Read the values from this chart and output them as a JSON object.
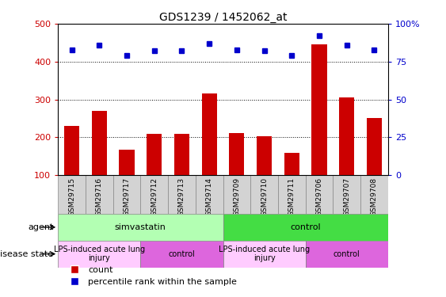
{
  "title": "GDS1239 / 1452062_at",
  "samples": [
    "GSM29715",
    "GSM29716",
    "GSM29717",
    "GSM29712",
    "GSM29713",
    "GSM29714",
    "GSM29709",
    "GSM29710",
    "GSM29711",
    "GSM29706",
    "GSM29707",
    "GSM29708"
  ],
  "counts": [
    230,
    270,
    168,
    210,
    210,
    315,
    212,
    202,
    160,
    445,
    305,
    252
  ],
  "percentiles": [
    83,
    86,
    79,
    82,
    82,
    87,
    83,
    82,
    79,
    92,
    86,
    83
  ],
  "bar_color": "#cc0000",
  "dot_color": "#0000cc",
  "ylim_left": [
    100,
    500
  ],
  "ylim_right": [
    0,
    100
  ],
  "yticks_left": [
    100,
    200,
    300,
    400,
    500
  ],
  "yticks_right": [
    0,
    25,
    50,
    75,
    100
  ],
  "gridlines": [
    200,
    300,
    400
  ],
  "agent_groups": [
    {
      "label": "simvastatin",
      "start": 0,
      "end": 6,
      "color": "#b3ffb3"
    },
    {
      "label": "control",
      "start": 6,
      "end": 12,
      "color": "#44dd44"
    }
  ],
  "disease_groups": [
    {
      "label": "LPS-induced acute lung\ninjury",
      "start": 0,
      "end": 3,
      "color": "#ffccff"
    },
    {
      "label": "control",
      "start": 3,
      "end": 6,
      "color": "#dd66dd"
    },
    {
      "label": "LPS-induced acute lung\ninjury",
      "start": 6,
      "end": 9,
      "color": "#ffccff"
    },
    {
      "label": "control",
      "start": 9,
      "end": 12,
      "color": "#dd66dd"
    }
  ],
  "legend_count_label": "count",
  "legend_pct_label": "percentile rank within the sample",
  "agent_label": "agent",
  "disease_label": "disease state",
  "sample_bg_color": "#d3d3d3",
  "sample_border_color": "#888888"
}
